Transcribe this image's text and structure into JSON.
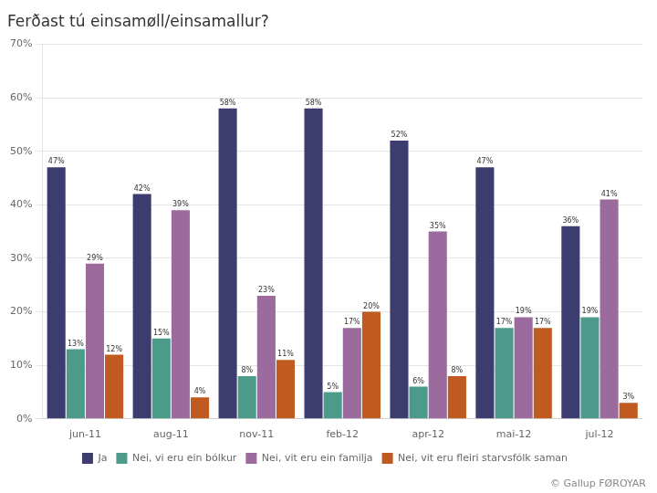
{
  "chart_data": {
    "type": "bar",
    "title": "Ferðast tú einsamøll/einsamallur?",
    "categories": [
      "jun-11",
      "aug-11",
      "nov-11",
      "feb-12",
      "apr-12",
      "mai-12",
      "jul-12"
    ],
    "series": [
      {
        "name": "Ja",
        "color": "#3d3c6e",
        "values": [
          47,
          42,
          58,
          58,
          52,
          47,
          36
        ],
        "value_labels": [
          "47%",
          "42%",
          "58%",
          "58%",
          "52%",
          "47%",
          "36%"
        ]
      },
      {
        "name": "Nei, vi eru ein bólkur",
        "color": "#4b9a8a",
        "values": [
          13,
          15,
          8,
          5,
          6,
          17,
          19
        ],
        "value_labels": [
          "13%",
          "15%",
          "8%",
          "5%",
          "6%",
          "17%",
          "19%"
        ]
      },
      {
        "name": "Nei, vit eru ein familja",
        "color": "#9b6b9e",
        "values": [
          29,
          39,
          23,
          17,
          35,
          19,
          41
        ],
        "value_labels": [
          "29%",
          "39%",
          "23%",
          "17%",
          "35%",
          "19%",
          "41%"
        ]
      },
      {
        "name": "Nei, vit eru fleiri starvsfólk saman",
        "color": "#c05a20",
        "values": [
          12,
          4,
          11,
          20,
          8,
          17,
          3
        ],
        "value_labels": [
          "12%",
          "4%",
          "11%",
          "20%",
          "8%",
          "17%",
          "3%"
        ]
      }
    ],
    "ylim": [
      0,
      70
    ],
    "yticks": [
      {
        "value": 0,
        "label": "0%"
      },
      {
        "value": 10,
        "label": "10%"
      },
      {
        "value": 20,
        "label": "20%"
      },
      {
        "value": 30,
        "label": "30%"
      },
      {
        "value": 40,
        "label": "40%"
      },
      {
        "value": 50,
        "label": "50%"
      },
      {
        "value": 60,
        "label": "60%"
      },
      {
        "value": 70,
        "label": "70%"
      }
    ],
    "grid": true,
    "legend": "bottom",
    "data_labels": true,
    "annotations": [
      "©",
      "Gallup",
      "FØROYAR"
    ]
  }
}
